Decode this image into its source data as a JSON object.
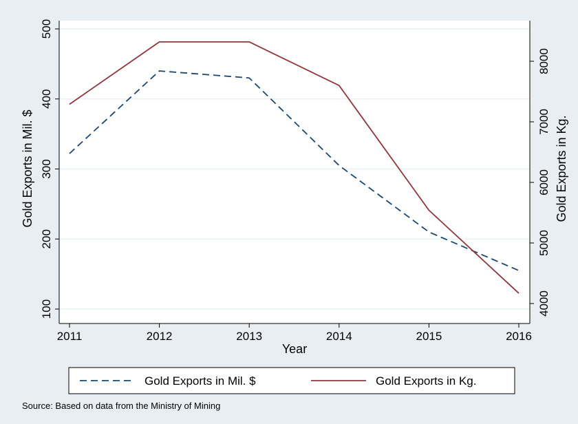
{
  "chart_data": {
    "type": "line",
    "xlabel": "Year",
    "ylabel_left": "Gold Exports in Mil. $",
    "ylabel_right": "Gold Exports in Kg.",
    "x": [
      2011,
      2012,
      2013,
      2014,
      2015,
      2016
    ],
    "xlim": [
      2011,
      2016
    ],
    "ylim_left": [
      100,
      500
    ],
    "ylim_right": [
      4000,
      8300
    ],
    "yticks_left": [
      100,
      200,
      300,
      400,
      500
    ],
    "yticks_right": [
      4000,
      5000,
      6000,
      7000,
      8000
    ],
    "grid": true,
    "legend_position": "bottom",
    "series": [
      {
        "name": "Gold Exports in Mil. $",
        "axis": "left",
        "style": "dashed",
        "color": "#1a476f",
        "values": [
          322,
          440,
          430,
          305,
          210,
          155
        ]
      },
      {
        "name": "Gold Exports in Kg.",
        "axis": "right",
        "style": "solid",
        "color": "#90353b",
        "values": [
          7290,
          8320,
          8320,
          7600,
          5540,
          4170
        ]
      }
    ],
    "note": "Source: Based on data from the Ministry of Mining"
  },
  "colors": {
    "background": "#e9eef2",
    "plot_area": "#ffffff",
    "grid": "#eaf2f3"
  }
}
